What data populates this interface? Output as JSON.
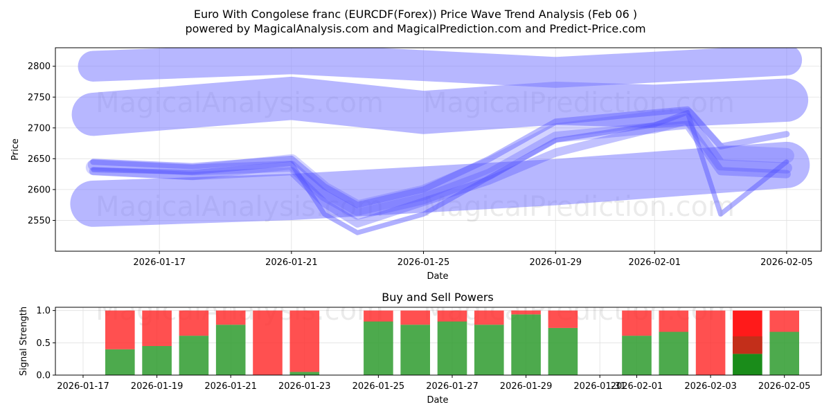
{
  "title_line1": "Euro With Congolese franc (EURCDF(Forex)) Price Wave Trend Analysis (Feb 06 )",
  "title_line2": "powered by MagicalAnalysis.com and MagicalPrediction.com and Predict-Price.com",
  "watermarks": {
    "top": [
      "MagicalAnalysis.com",
      "MagicalPrediction.com"
    ],
    "mid": [
      "MagicalAnalysis.com",
      "MagicalPrediction.com"
    ],
    "bottom": [
      "MagicalAnalysis.com",
      "MagicalPrediction.com"
    ]
  },
  "colors": {
    "band": "#7b7bff",
    "wave": "#5050ff",
    "buy": "#2e9b2e",
    "sell": "#ff2a2a",
    "grid": "#e0e0e0",
    "dark_buy": "#1a8c1a",
    "dark_sell": "#ff1a1a",
    "dark_mid": "#c0301a"
  },
  "chart_data": [
    {
      "type": "line",
      "title": "Price Wave Trend Analysis",
      "xlabel": "Date",
      "ylabel": "Price",
      "x_tick_labels": [
        "2026-01-17",
        "2026-01-21",
        "2026-01-25",
        "2026-01-29",
        "2026-02-01",
        "2026-02-05"
      ],
      "y_tick_labels": [
        "2550",
        "2600",
        "2650",
        "2700",
        "2750",
        "2800"
      ],
      "y_ticks": [
        2550,
        2600,
        2650,
        2700,
        2750,
        2800
      ],
      "ylim": [
        2500,
        2830
      ],
      "grid": true,
      "trend_bands": [
        {
          "name": "upper-channel",
          "x": [
            "2026-01-15",
            "2026-01-21",
            "2026-01-29",
            "2026-02-05"
          ],
          "y": [
            2800,
            2812,
            2790,
            2810
          ],
          "width": 50
        },
        {
          "name": "middle-channel",
          "x": [
            "2026-01-15",
            "2026-01-21",
            "2026-01-25",
            "2026-01-29",
            "2026-02-01",
            "2026-02-05"
          ],
          "y": [
            2722,
            2748,
            2725,
            2740,
            2735,
            2745
          ],
          "width": 70
        },
        {
          "name": "lower-channel",
          "x": [
            "2026-01-15",
            "2026-01-21",
            "2026-01-29",
            "2026-02-05"
          ],
          "y": [
            2577,
            2588,
            2612,
            2640
          ],
          "width": 75
        }
      ],
      "series": [
        {
          "name": "wave-1",
          "x": [
            "2026-01-15",
            "2026-01-18",
            "2026-01-21",
            "2026-01-22",
            "2026-01-23",
            "2026-01-25",
            "2026-01-27",
            "2026-01-29",
            "2026-02-01",
            "2026-02-02",
            "2026-02-03",
            "2026-02-05"
          ],
          "y": [
            2636,
            2628,
            2645,
            2600,
            2570,
            2595,
            2640,
            2695,
            2715,
            2720,
            2660,
            2655
          ]
        },
        {
          "name": "wave-2",
          "x": [
            "2026-01-15",
            "2026-01-18",
            "2026-01-21",
            "2026-01-22",
            "2026-01-23",
            "2026-01-25",
            "2026-01-27",
            "2026-01-29",
            "2026-02-01",
            "2026-02-02",
            "2026-02-03",
            "2026-02-05"
          ],
          "y": [
            2640,
            2632,
            2638,
            2590,
            2560,
            2585,
            2625,
            2685,
            2700,
            2715,
            2640,
            2635
          ]
        },
        {
          "name": "wave-3",
          "x": [
            "2026-01-15",
            "2026-01-18",
            "2026-01-21",
            "2026-01-22",
            "2026-01-23",
            "2026-01-25",
            "2026-01-27",
            "2026-01-29",
            "2026-02-01",
            "2026-02-02",
            "2026-02-03",
            "2026-02-05"
          ],
          "y": [
            2630,
            2622,
            2630,
            2578,
            2545,
            2580,
            2615,
            2660,
            2700,
            2705,
            2630,
            2625
          ]
        },
        {
          "name": "wave-4",
          "x": [
            "2026-01-15",
            "2026-01-18",
            "2026-01-21",
            "2026-01-22",
            "2026-01-23",
            "2026-01-25",
            "2026-01-27",
            "2026-01-29",
            "2026-02-01",
            "2026-02-02",
            "2026-02-03",
            "2026-02-05"
          ],
          "y": [
            2645,
            2638,
            2650,
            2605,
            2575,
            2600,
            2650,
            2710,
            2725,
            2730,
            2670,
            2690
          ]
        },
        {
          "name": "wave-5",
          "x": [
            "2026-01-15",
            "2026-01-18",
            "2026-01-21",
            "2026-01-22",
            "2026-01-23",
            "2026-01-25",
            "2026-01-27",
            "2026-01-29",
            "2026-02-01",
            "2026-02-02",
            "2026-02-03",
            "2026-02-05"
          ],
          "y": [
            2632,
            2628,
            2642,
            2560,
            2530,
            2560,
            2620,
            2680,
            2705,
            2725,
            2560,
            2645
          ]
        }
      ]
    },
    {
      "type": "bar",
      "title": "Buy and Sell Powers",
      "xlabel": "Date",
      "ylabel": "Signal Strength",
      "ylim": [
        0,
        1.05
      ],
      "y_ticks": [
        0.0,
        0.5,
        1.0
      ],
      "y_tick_labels": [
        "0.0",
        "0.5",
        "1.0"
      ],
      "x_tick_labels": [
        "2026-01-17",
        "2026-01-19",
        "2026-01-21",
        "2026-01-23",
        "2026-01-25",
        "2026-01-27",
        "2026-01-29",
        "2026-01-31",
        "2026-02-01",
        "2026-02-03",
        "2026-02-05"
      ],
      "x_tick_dates": [
        "2026-01-17",
        "2026-01-19",
        "2026-01-21",
        "2026-01-23",
        "2026-01-25",
        "2026-01-27",
        "2026-01-29",
        "2026-01-31",
        "2026-02-01",
        "2026-02-03",
        "2026-02-05"
      ],
      "categories": [
        "2026-01-18",
        "2026-01-19",
        "2026-01-20",
        "2026-01-21",
        "2026-01-22",
        "2026-01-23",
        "2026-01-25",
        "2026-01-26",
        "2026-01-27",
        "2026-01-28",
        "2026-01-29",
        "2026-01-30",
        "2026-02-01",
        "2026-02-02",
        "2026-02-03",
        "2026-02-04",
        "2026-02-05"
      ],
      "series": [
        {
          "name": "Buy",
          "values": [
            0.4,
            0.45,
            0.61,
            0.78,
            0.0,
            0.05,
            0.83,
            0.78,
            0.83,
            0.78,
            0.94,
            0.73,
            0.61,
            0.67,
            0.0,
            0.33,
            0.67
          ]
        },
        {
          "name": "Sell",
          "values": [
            0.6,
            0.55,
            0.39,
            0.22,
            1.0,
            0.95,
            0.17,
            0.22,
            0.17,
            0.22,
            0.06,
            0.27,
            0.39,
            0.33,
            1.0,
            0.67,
            0.33
          ]
        }
      ]
    }
  ]
}
